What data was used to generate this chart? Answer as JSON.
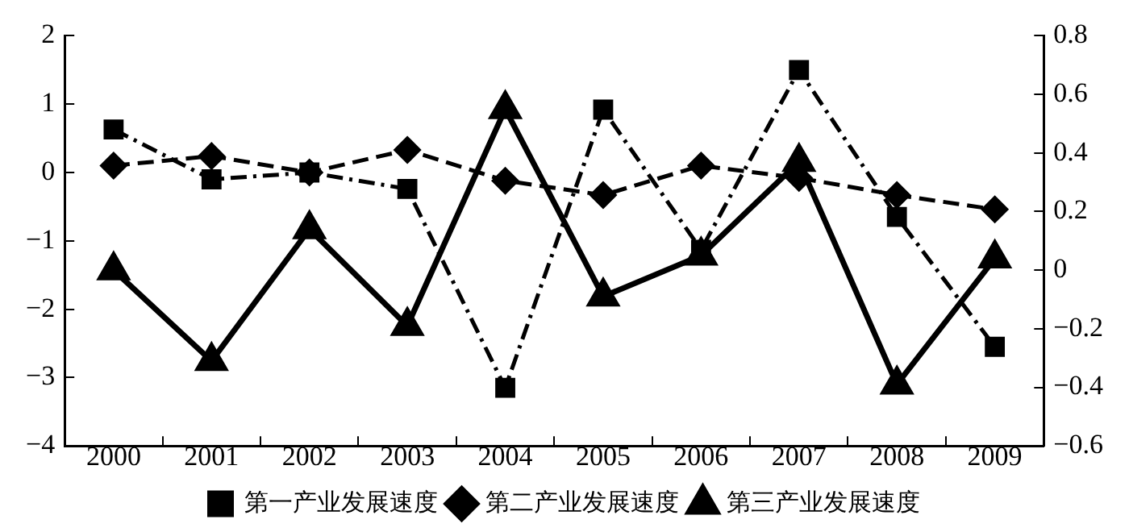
{
  "chart_data": {
    "type": "line",
    "categories": [
      "2000",
      "2001",
      "2002",
      "2003",
      "2004",
      "2005",
      "2006",
      "2007",
      "2008",
      "2009"
    ],
    "series": [
      {
        "name": "第一产业发展速度",
        "color": "#000000",
        "marker": "square",
        "line_style": "dashdot",
        "values": [
          0.63,
          -0.1,
          0.0,
          -0.24,
          -3.15,
          0.92,
          -1.13,
          1.5,
          -0.65,
          -2.55
        ]
      },
      {
        "name": "第二产业发展速度",
        "color": "#000000",
        "marker": "diamond",
        "line_style": "dashed",
        "values": [
          0.1,
          0.24,
          0.0,
          0.33,
          -0.12,
          -0.33,
          0.1,
          -0.08,
          -0.33,
          -0.54
        ]
      },
      {
        "name": "第三产业发展速度",
        "color": "#000000",
        "marker": "triangle",
        "line_style": "solid",
        "axis": "y2",
        "values": [
          0.0,
          -0.31,
          0.14,
          -0.19,
          0.55,
          -0.09,
          0.05,
          0.37,
          -0.39,
          0.04
        ]
      }
    ],
    "ylim": [
      -4,
      2
    ],
    "yticks": [
      -4,
      -3,
      -2,
      -1,
      0,
      1,
      2
    ],
    "y2lim": [
      -0.6,
      0.8
    ],
    "y2ticks": [
      -0.6,
      -0.4,
      -0.2,
      0,
      0.2,
      0.4,
      0.6,
      0.8
    ],
    "grid": false,
    "legend": "bottom"
  }
}
